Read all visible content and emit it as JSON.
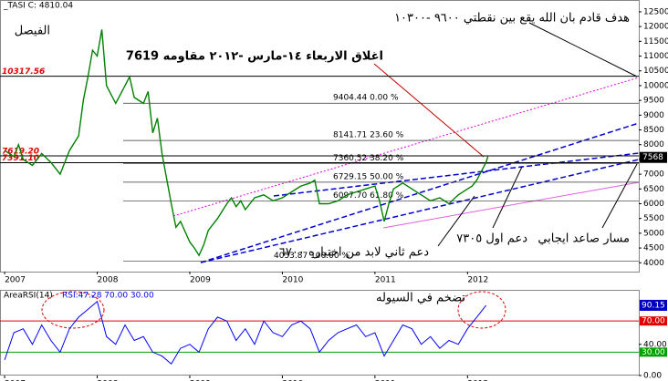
{
  "chart_data": [
    {
      "type": "line",
      "title": "_TASI C: 4810.04",
      "subtitle": "الفيصل",
      "color": "#008000",
      "x": [
        2007.0,
        2007.1,
        2007.15,
        2007.2,
        2007.3,
        2007.4,
        2007.5,
        2007.6,
        2007.7,
        2007.8,
        2007.85,
        2007.9,
        2007.95,
        2008.0,
        2008.05,
        2008.1,
        2008.2,
        2008.3,
        2008.35,
        2008.4,
        2008.5,
        2008.55,
        2008.6,
        2008.65,
        2008.7,
        2008.8,
        2008.85,
        2008.9,
        2009.0,
        2009.05,
        2009.1,
        2009.15,
        2009.2,
        2009.3,
        2009.4,
        2009.45,
        2009.5,
        2009.55,
        2009.6,
        2009.7,
        2009.8,
        2009.9,
        2010.0,
        2010.1,
        2010.2,
        2010.3,
        2010.35,
        2010.4,
        2010.5,
        2010.6,
        2010.7,
        2010.8,
        2010.9,
        2011.0,
        2011.05,
        2011.1,
        2011.15,
        2011.2,
        2011.3,
        2011.4,
        2011.5,
        2011.6,
        2011.7,
        2011.8,
        2011.9,
        2012.0,
        2012.05,
        2012.1,
        2012.15,
        2012.2,
        2012.22
      ],
      "values": [
        7800,
        7600,
        8000,
        7500,
        7300,
        7700,
        7400,
        7000,
        7800,
        8300,
        9500,
        10300,
        11200,
        11000,
        11900,
        10000,
        9400,
        10000,
        10300,
        9600,
        9400,
        9800,
        8400,
        8900,
        7700,
        6000,
        5200,
        5400,
        4700,
        4500,
        4250,
        4600,
        5100,
        5500,
        6000,
        6200,
        5900,
        6100,
        5800,
        6200,
        6300,
        6100,
        6200,
        6400,
        6600,
        6700,
        6800,
        6000,
        6000,
        6100,
        6300,
        6400,
        6500,
        6600,
        6100,
        5400,
        6000,
        6500,
        6700,
        6500,
        6300,
        6100,
        6200,
        6000,
        6300,
        6500,
        6600,
        6800,
        7100,
        7400,
        7600
      ],
      "xlim": [
        2006.95,
        2013.85
      ],
      "xticks": [
        2007,
        2008,
        2009,
        2010,
        2011,
        2012
      ],
      "ylim": [
        3700,
        12900
      ],
      "yticks": [
        4000,
        4500,
        5000,
        5500,
        6000,
        6500,
        7000,
        7500,
        8000,
        8500,
        9000,
        9500,
        10000,
        10500,
        11000,
        11500,
        12000,
        12500
      ],
      "levels": [
        {
          "value": 9404.44,
          "label": "9404.44 0.00 %"
        },
        {
          "value": 8141.71,
          "label": "8141.71 23.60 %"
        },
        {
          "value": 7360.52,
          "label": "7360.52 38.20 %"
        },
        {
          "value": 6729.15,
          "label": "6729.15 50.00 %"
        },
        {
          "value": 6097.7,
          "label": "6097.70 61.80 %"
        },
        {
          "value": 4053.87,
          "label": "4053.87 100.00 %"
        }
      ],
      "hlines": [
        {
          "value": 10317.56,
          "label": "10317.56"
        },
        {
          "value": 7619.2,
          "label": "7619.20"
        },
        {
          "value": 7391.1,
          "label": "7391.10"
        }
      ],
      "last_price": 7568,
      "annotations": [
        "هدف قادم بان الله يقع بين نقطتي ٩٦٠٠ -١٠٣٠٠",
        "اغلاق الاربعاء ١٤-مارس -٢٠١٢ مقاومه 7619",
        "دعم اول ٧٣٠٥",
        "مسار صاعد ايجابي",
        "دعم ثاني لابد من اختباره ٦٧٠٠"
      ]
    },
    {
      "type": "line",
      "title": "AreaRSI(14)",
      "legend": "RSI:47.28 70.00 30.00",
      "color": "#0000ff",
      "x": [
        2007.0,
        2007.1,
        2007.2,
        2007.3,
        2007.4,
        2007.5,
        2007.6,
        2007.7,
        2007.8,
        2007.9,
        2008.0,
        2008.1,
        2008.2,
        2008.3,
        2008.4,
        2008.5,
        2008.6,
        2008.7,
        2008.8,
        2008.9,
        2009.0,
        2009.1,
        2009.2,
        2009.3,
        2009.4,
        2009.5,
        2009.6,
        2009.7,
        2009.8,
        2009.9,
        2010.0,
        2010.1,
        2010.2,
        2010.3,
        2010.4,
        2010.5,
        2010.6,
        2010.7,
        2010.8,
        2010.9,
        2011.0,
        2011.1,
        2011.2,
        2011.3,
        2011.4,
        2011.5,
        2011.6,
        2011.7,
        2011.8,
        2011.9,
        2012.0,
        2012.1,
        2012.2
      ],
      "values": [
        20,
        55,
        60,
        40,
        65,
        45,
        30,
        60,
        75,
        85,
        95,
        50,
        40,
        65,
        45,
        50,
        30,
        25,
        15,
        35,
        40,
        30,
        60,
        75,
        70,
        45,
        60,
        40,
        70,
        55,
        50,
        65,
        70,
        60,
        30,
        45,
        55,
        60,
        65,
        50,
        55,
        25,
        45,
        65,
        60,
        40,
        50,
        35,
        45,
        40,
        60,
        75,
        90
      ],
      "xlim": [
        2006.95,
        2013.85
      ],
      "xticks": [
        2007,
        2008,
        2009,
        2010,
        2011,
        2012
      ],
      "ylim": [
        0,
        110
      ],
      "yticks": [
        {
          "value": 40,
          "label": "40.00"
        },
        {
          "value": 0,
          "label": "0.00"
        }
      ],
      "levels": [
        {
          "value": 70,
          "label": "70.00",
          "color": "#e00000"
        },
        {
          "value": 30,
          "label": "30.00",
          "color": "#00a000"
        }
      ],
      "last_value": {
        "value": 90.15,
        "label": "90.15"
      },
      "annotation": "تضخم في السيوله"
    }
  ]
}
